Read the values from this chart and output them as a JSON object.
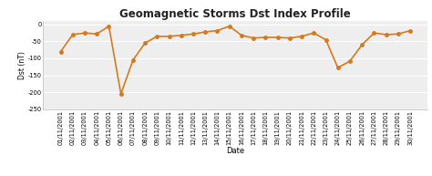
{
  "title": "Geomagnetic Storms Dst Index Profile",
  "xlabel": "Date",
  "ylabel": "Dst (nT)",
  "dates": [
    "01/11/2001",
    "02/11/2001",
    "03/11/2001",
    "04/11/2001",
    "05/11/2001",
    "06/11/2001",
    "07/11/2001",
    "08/11/2001",
    "09/11/2001",
    "10/11/2001",
    "11/11/2001",
    "12/11/2001",
    "13/11/2001",
    "14/11/2001",
    "15/11/2001",
    "16/11/2001",
    "17/11/2001",
    "18/11/2001",
    "19/11/2001",
    "20/11/2001",
    "21/11/2001",
    "22/11/2001",
    "23/11/2001",
    "24/11/2001",
    "25/11/2001",
    "26/11/2001",
    "27/11/2001",
    "28/11/2001",
    "29/11/2001",
    "30/11/2001"
  ],
  "values": [
    -80,
    -30,
    -25,
    -28,
    -5,
    -205,
    -105,
    -55,
    -35,
    -35,
    -32,
    -28,
    -22,
    -18,
    -5,
    -32,
    -40,
    -38,
    -38,
    -40,
    -35,
    -25,
    -45,
    -128,
    -108,
    -60,
    -25,
    -30,
    -28,
    -18
  ],
  "line_color": "#D47A1E",
  "marker": "o",
  "marker_size": 2.5,
  "line_width": 1.2,
  "ylim": [
    -250,
    10
  ],
  "yticks": [
    0,
    -50,
    -100,
    -150,
    -200,
    -250
  ],
  "bg_color": "#ffffff",
  "plot_bg_color": "#eeeeee",
  "grid_color": "#ffffff",
  "title_fontsize": 8.5,
  "axis_label_fontsize": 6,
  "tick_fontsize": 4.8,
  "ylabel_fontsize": 5.5
}
